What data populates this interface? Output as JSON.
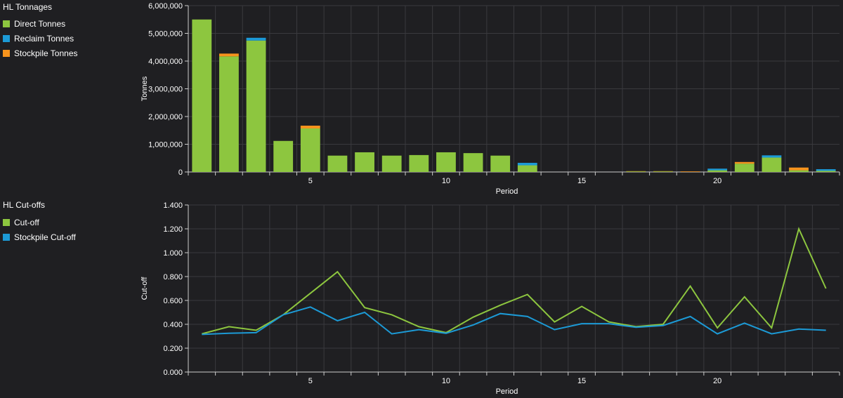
{
  "chart_data": [
    {
      "type": "bar",
      "stacked": true,
      "panel_title": "HL Tonnages",
      "xlabel": "Period",
      "ylabel": "Tonnes",
      "ylim": [
        0,
        6000000
      ],
      "yticks": [
        "0",
        "1,000,000",
        "2,000,000",
        "3,000,000",
        "4,000,000",
        "5,000,000",
        "6,000,000"
      ],
      "xticks": [
        "5",
        "10",
        "15",
        "20"
      ],
      "categories": [
        1,
        2,
        3,
        4,
        5,
        6,
        7,
        8,
        9,
        10,
        11,
        12,
        13,
        14,
        15,
        16,
        17,
        18,
        19,
        20,
        21,
        22,
        23,
        24
      ],
      "grid": true,
      "legend_position": "left",
      "series": [
        {
          "name": "Direct Tonnes",
          "color": "#8dc63f",
          "values": [
            5500000,
            4170000,
            4740000,
            1120000,
            1570000,
            590000,
            710000,
            590000,
            610000,
            710000,
            680000,
            590000,
            240000,
            0,
            0,
            0,
            20000,
            20000,
            0,
            60000,
            300000,
            520000,
            60000,
            40000
          ]
        },
        {
          "name": "Reclaim Tonnes",
          "color": "#1c9ad6",
          "values": [
            0,
            0,
            100000,
            0,
            0,
            0,
            0,
            0,
            0,
            0,
            0,
            0,
            90000,
            0,
            0,
            0,
            0,
            0,
            0,
            60000,
            0,
            80000,
            0,
            60000
          ]
        },
        {
          "name": "Stockpile Tonnes",
          "color": "#f7941d",
          "values": [
            0,
            100000,
            0,
            0,
            100000,
            0,
            0,
            0,
            0,
            0,
            0,
            0,
            0,
            0,
            0,
            0,
            10000,
            10000,
            20000,
            0,
            60000,
            0,
            100000,
            0
          ]
        }
      ]
    },
    {
      "type": "line",
      "panel_title": "HL Cut-offs",
      "xlabel": "Period",
      "ylabel": "Cut-off",
      "ylim": [
        0,
        1.4
      ],
      "yticks": [
        "0.000",
        "0.200",
        "0.400",
        "0.600",
        "0.800",
        "1.000",
        "1.200",
        "1.400"
      ],
      "xticks": [
        "5",
        "10",
        "15",
        "20"
      ],
      "x": [
        1,
        2,
        3,
        4,
        5,
        6,
        7,
        8,
        9,
        10,
        11,
        12,
        13,
        14,
        15,
        16,
        17,
        18,
        19,
        20,
        21,
        22,
        23,
        24
      ],
      "grid": true,
      "legend_position": "left",
      "series": [
        {
          "name": "Cut-off",
          "color": "#8dc63f",
          "values": [
            0.32,
            0.38,
            0.35,
            0.48,
            0.66,
            0.84,
            0.54,
            0.48,
            0.38,
            0.33,
            0.46,
            0.56,
            0.65,
            0.42,
            0.55,
            0.42,
            0.38,
            0.4,
            0.72,
            0.37,
            0.63,
            0.37,
            1.2,
            0.7
          ]
        },
        {
          "name": "Stockpile Cut-off",
          "color": "#1c9ad6",
          "values": [
            0.315,
            0.325,
            0.33,
            0.48,
            0.545,
            0.43,
            0.5,
            0.32,
            0.355,
            0.325,
            0.395,
            0.49,
            0.465,
            0.355,
            0.405,
            0.405,
            0.375,
            0.39,
            0.465,
            0.32,
            0.41,
            0.32,
            0.36,
            0.35
          ]
        }
      ]
    }
  ]
}
